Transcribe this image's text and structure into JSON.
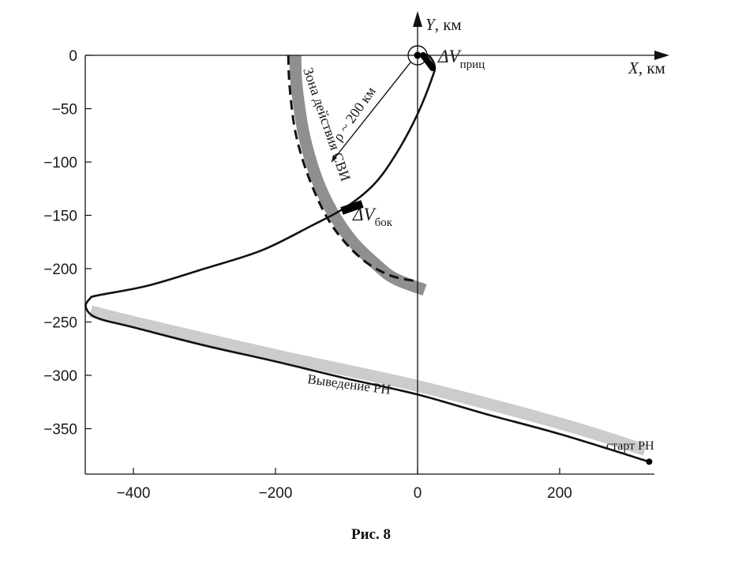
{
  "figure": {
    "caption": "Рис. 8"
  },
  "chart_data": {
    "type": "line",
    "axes": {
      "x": {
        "var": "X",
        "unit": ", км",
        "range": [
          -470,
          330
        ],
        "ticks": [
          -400,
          -200,
          0,
          200
        ]
      },
      "y": {
        "var": "Y",
        "unit": ", км",
        "range": [
          -390,
          0
        ],
        "ticks": [
          0,
          -50,
          -100,
          -150,
          -200,
          -250,
          -300,
          -350
        ]
      },
      "grid": false,
      "frame": "left-top-bottom"
    },
    "series": [
      {
        "kind": "trajectory",
        "color": "#111111",
        "points": [
          [
            326,
            -381
          ],
          [
            200,
            -355
          ],
          [
            100,
            -337
          ],
          [
            0,
            -318
          ],
          [
            -100,
            -303
          ],
          [
            -200,
            -287
          ],
          [
            -300,
            -272
          ],
          [
            -400,
            -255
          ],
          [
            -452,
            -246
          ],
          [
            -467,
            -236
          ],
          [
            -461,
            -228
          ],
          [
            -450,
            -225
          ],
          [
            -380,
            -216
          ],
          [
            -300,
            -200
          ],
          [
            -220,
            -183
          ],
          [
            -150,
            -160
          ],
          [
            -100,
            -142
          ],
          [
            -60,
            -120
          ],
          [
            -28,
            -90
          ],
          [
            0,
            -55
          ],
          [
            20,
            -22
          ],
          [
            24,
            -10
          ],
          [
            15,
            0
          ],
          [
            2,
            0
          ]
        ]
      },
      {
        "kind": "band",
        "color": "#cccccc",
        "points": [
          [
            -460,
            -240
          ],
          [
            -400,
            -250
          ],
          [
            -200,
            -281
          ],
          [
            0,
            -310
          ],
          [
            200,
            -345
          ],
          [
            320,
            -370
          ]
        ]
      },
      {
        "kind": "band",
        "color": "#8f8f8f",
        "points": [
          [
            -172,
            0
          ],
          [
            -170,
            -30
          ],
          [
            -158,
            -80
          ],
          [
            -133,
            -130
          ],
          [
            -97,
            -170
          ],
          [
            -55,
            -198
          ],
          [
            -30,
            -210
          ],
          [
            10,
            -220
          ]
        ]
      },
      {
        "kind": "dashed",
        "color": "#111111",
        "points": [
          [
            -182,
            0
          ],
          [
            -180,
            -30
          ],
          [
            -171,
            -75
          ],
          [
            -150,
            -120
          ],
          [
            -120,
            -160
          ],
          [
            -80,
            -190
          ],
          [
            -40,
            -206
          ],
          [
            0,
            -212
          ]
        ]
      }
    ],
    "markers": [
      {
        "name": "origin-target",
        "x": 0,
        "y": 0
      },
      {
        "name": "start-point",
        "x": 326,
        "y": -381
      }
    ],
    "annotations": {
      "dv_approach": {
        "symbol": "ΔV",
        "subscript": "приц"
      },
      "dv_lateral": {
        "symbol": "ΔV",
        "subscript": "бок"
      },
      "zone": "Зона действия СВИ",
      "radius": "ρ ~ 200 км",
      "launch_path": "Выведение РН",
      "start": "старт РН"
    }
  }
}
